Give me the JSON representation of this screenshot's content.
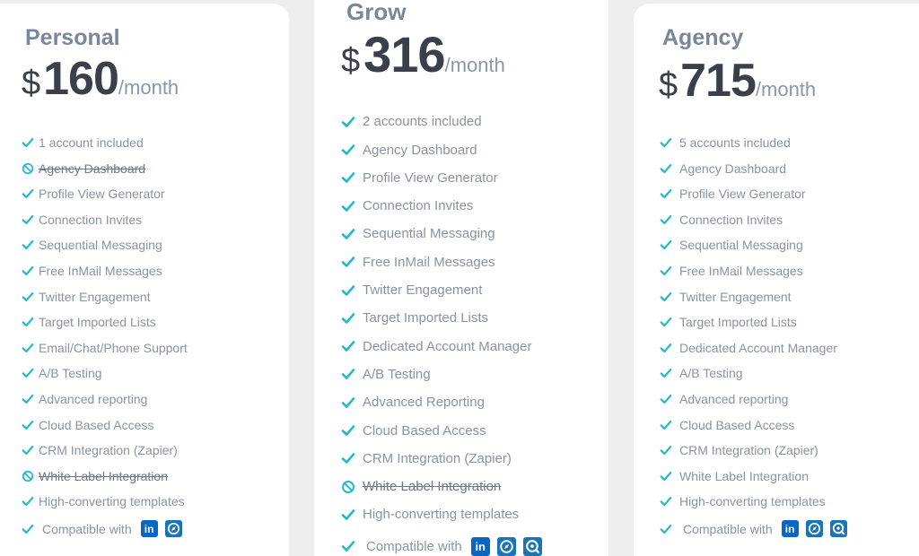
{
  "colors": {
    "check": "#25b8c8",
    "ban": "#25b8c8",
    "linkedin": "#0a66c2",
    "brand": "#1a74b8"
  },
  "compat_icons": [
    "linkedin-icon",
    "compass-icon",
    "search-badge-icon"
  ],
  "plans": [
    {
      "name": "Personal",
      "currency": "$",
      "amount": "160",
      "period": "/month",
      "features": [
        {
          "label": "1 account included",
          "enabled": true
        },
        {
          "label": "Agency Dashboard",
          "enabled": false
        },
        {
          "label": "Profile View Generator",
          "enabled": true
        },
        {
          "label": "Connection Invites",
          "enabled": true
        },
        {
          "label": "Sequential Messaging",
          "enabled": true
        },
        {
          "label": "Free InMail Messages",
          "enabled": true
        },
        {
          "label": "Twitter Engagement",
          "enabled": true
        },
        {
          "label": "Target Imported Lists",
          "enabled": true
        },
        {
          "label": "Email/Chat/Phone Support",
          "enabled": true
        },
        {
          "label": "A/B Testing",
          "enabled": true
        },
        {
          "label": "Advanced reporting",
          "enabled": true
        },
        {
          "label": "Cloud Based Access",
          "enabled": true
        },
        {
          "label": "CRM Integration (Zapier)",
          "enabled": true
        },
        {
          "label": "White Label Integration",
          "enabled": false
        },
        {
          "label": "High-converting templates",
          "enabled": true
        }
      ],
      "compatible_label": "Compatible with"
    },
    {
      "name": "Grow",
      "currency": "$",
      "amount": "316",
      "period": "/month",
      "features": [
        {
          "label": "2 accounts included",
          "enabled": true
        },
        {
          "label": "Agency Dashboard",
          "enabled": true
        },
        {
          "label": "Profile View Generator",
          "enabled": true
        },
        {
          "label": "Connection Invites",
          "enabled": true
        },
        {
          "label": "Sequential Messaging",
          "enabled": true
        },
        {
          "label": "Free InMail Messages",
          "enabled": true
        },
        {
          "label": "Twitter Engagement",
          "enabled": true
        },
        {
          "label": "Target Imported Lists",
          "enabled": true
        },
        {
          "label": "Dedicated Account Manager",
          "enabled": true
        },
        {
          "label": "A/B Testing",
          "enabled": true
        },
        {
          "label": "Advanced Reporting",
          "enabled": true
        },
        {
          "label": "Cloud Based Access",
          "enabled": true
        },
        {
          "label": "CRM Integration (Zapier)",
          "enabled": true
        },
        {
          "label": "White Label Integration",
          "enabled": false
        },
        {
          "label": "High-converting templates",
          "enabled": true
        }
      ],
      "compatible_label": "Compatible with"
    },
    {
      "name": "Agency",
      "currency": "$",
      "amount": "715",
      "period": "/month",
      "features": [
        {
          "label": "5 accounts included",
          "enabled": true
        },
        {
          "label": "Agency Dashboard",
          "enabled": true
        },
        {
          "label": "Profile View Generator",
          "enabled": true
        },
        {
          "label": "Connection Invites",
          "enabled": true
        },
        {
          "label": "Sequential Messaging",
          "enabled": true
        },
        {
          "label": "Free InMail Messages",
          "enabled": true
        },
        {
          "label": "Twitter Engagement",
          "enabled": true
        },
        {
          "label": "Target Imported Lists",
          "enabled": true
        },
        {
          "label": "Dedicated Account Manager",
          "enabled": true
        },
        {
          "label": "A/B Testing",
          "enabled": true
        },
        {
          "label": "Advanced reporting",
          "enabled": true
        },
        {
          "label": "Cloud Based Access",
          "enabled": true
        },
        {
          "label": "CRM Integration (Zapier)",
          "enabled": true
        },
        {
          "label": "White Label Integration",
          "enabled": true
        },
        {
          "label": "High-converting templates",
          "enabled": true
        }
      ],
      "compatible_label": "Compatible with"
    }
  ]
}
